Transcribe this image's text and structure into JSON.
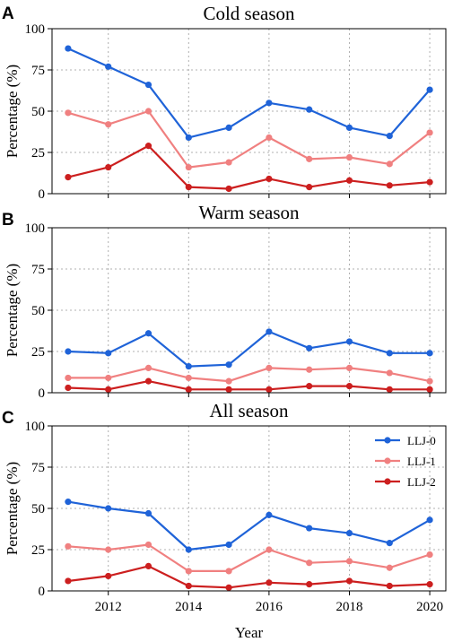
{
  "chart_data": [
    {
      "type": "line",
      "panel_label": "A",
      "title": "Cold season",
      "ylabel": "Percentage (%)",
      "xlabel": "",
      "x": [
        2011,
        2012,
        2013,
        2014,
        2015,
        2016,
        2017,
        2018,
        2019,
        2020
      ],
      "xlim": [
        2010.6,
        2020.4
      ],
      "ylim": [
        0,
        100
      ],
      "xticks": [
        2012,
        2014,
        2016,
        2018,
        2020
      ],
      "yticks": [
        0,
        25,
        50,
        75,
        100
      ],
      "xtick_labels_visible": false,
      "grid": true,
      "series": [
        {
          "name": "LLJ-0",
          "color": "#1f63d8",
          "values": [
            88,
            77,
            66,
            34,
            40,
            55,
            51,
            40,
            35,
            63
          ]
        },
        {
          "name": "LLJ-1",
          "color": "#f08080",
          "values": [
            49,
            42,
            50,
            16,
            19,
            34,
            21,
            22,
            18,
            37
          ]
        },
        {
          "name": "LLJ-2",
          "color": "#cc1f1f",
          "values": [
            10,
            16,
            29,
            4,
            3,
            9,
            4,
            8,
            5,
            7
          ]
        }
      ]
    },
    {
      "type": "line",
      "panel_label": "B",
      "title": "Warm season",
      "ylabel": "Percentage (%)",
      "xlabel": "",
      "x": [
        2011,
        2012,
        2013,
        2014,
        2015,
        2016,
        2017,
        2018,
        2019,
        2020
      ],
      "xlim": [
        2010.6,
        2020.4
      ],
      "ylim": [
        0,
        100
      ],
      "xticks": [
        2012,
        2014,
        2016,
        2018,
        2020
      ],
      "yticks": [
        0,
        25,
        50,
        75,
        100
      ],
      "xtick_labels_visible": false,
      "grid": true,
      "series": [
        {
          "name": "LLJ-0",
          "color": "#1f63d8",
          "values": [
            25,
            24,
            36,
            16,
            17,
            37,
            27,
            31,
            24,
            24
          ]
        },
        {
          "name": "LLJ-1",
          "color": "#f08080",
          "values": [
            9,
            9,
            15,
            9,
            7,
            15,
            14,
            15,
            12,
            7
          ]
        },
        {
          "name": "LLJ-2",
          "color": "#cc1f1f",
          "values": [
            3,
            2,
            7,
            2,
            2,
            2,
            4,
            4,
            2,
            2
          ]
        }
      ]
    },
    {
      "type": "line",
      "panel_label": "C",
      "title": "All season",
      "ylabel": "Percentage (%)",
      "xlabel": "Year",
      "x": [
        2011,
        2012,
        2013,
        2014,
        2015,
        2016,
        2017,
        2018,
        2019,
        2020
      ],
      "xlim": [
        2010.6,
        2020.4
      ],
      "ylim": [
        0,
        100
      ],
      "xticks": [
        2012,
        2014,
        2016,
        2018,
        2020
      ],
      "yticks": [
        0,
        25,
        50,
        75,
        100
      ],
      "xtick_labels_visible": true,
      "grid": true,
      "legend": "top-right",
      "series": [
        {
          "name": "LLJ-0",
          "color": "#1f63d8",
          "values": [
            54,
            50,
            47,
            25,
            28,
            46,
            38,
            35,
            29,
            43
          ]
        },
        {
          "name": "LLJ-1",
          "color": "#f08080",
          "values": [
            27,
            25,
            28,
            12,
            12,
            25,
            17,
            18,
            14,
            22
          ]
        },
        {
          "name": "LLJ-2",
          "color": "#cc1f1f",
          "values": [
            6,
            9,
            15,
            3,
            2,
            5,
            4,
            6,
            3,
            4
          ]
        }
      ]
    }
  ]
}
